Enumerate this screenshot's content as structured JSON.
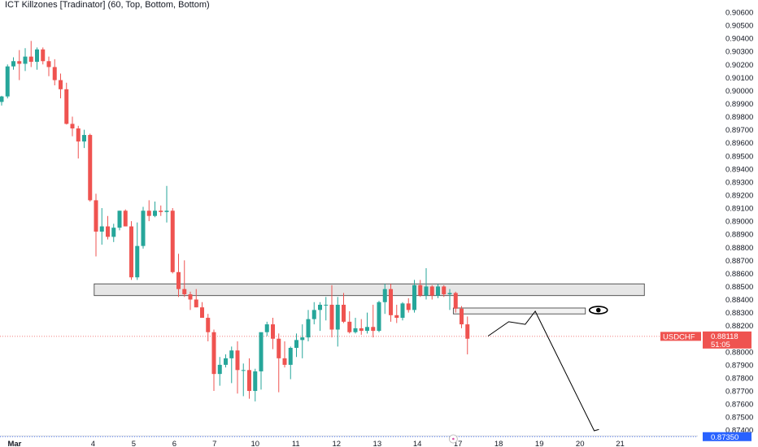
{
  "indicator_label": "ICT Killzones [Tradinator] (60, Top, Bottom, Bottom)",
  "symbol_tag": "USDCHF",
  "colors": {
    "up": "#26a69a",
    "down": "#ef5350",
    "zone_fill": "#e6e6e6",
    "zone_stroke": "#333333",
    "price_line": "#ef5350",
    "target_line": "#2962ff",
    "drawing": "#000000"
  },
  "chart_data": {
    "type": "candlestick",
    "symbol": "USDCHF",
    "y_ticks": [
      "0.90600",
      "0.90500",
      "0.90400",
      "0.90300",
      "0.90200",
      "0.90100",
      "0.90000",
      "0.89900",
      "0.89800",
      "0.89700",
      "0.89600",
      "0.89500",
      "0.89400",
      "0.89300",
      "0.89200",
      "0.89100",
      "0.89000",
      "0.88900",
      "0.88800",
      "0.88700",
      "0.88600",
      "0.88500",
      "0.88400",
      "0.88300",
      "0.88200",
      "0.88000",
      "0.87900",
      "0.87800",
      "0.87700",
      "0.87600",
      "0.87500",
      "0.87400"
    ],
    "x_ticks": [
      {
        "label": "Mar",
        "bold": true,
        "candle": 2.2
      },
      {
        "label": "4",
        "bold": false,
        "candle": 15.5
      },
      {
        "label": "5",
        "bold": false,
        "candle": 22.4
      },
      {
        "label": "6",
        "bold": false,
        "candle": 29.3
      },
      {
        "label": "7",
        "bold": false,
        "candle": 36.1
      },
      {
        "label": "10",
        "bold": false,
        "candle": 43.0
      },
      {
        "label": "11",
        "bold": false,
        "candle": 49.9
      },
      {
        "label": "12",
        "bold": false,
        "candle": 56.8
      },
      {
        "label": "13",
        "bold": false,
        "candle": 63.7
      },
      {
        "label": "14",
        "bold": false,
        "candle": 70.5
      },
      {
        "label": "17",
        "bold": false,
        "candle": 77.4
      },
      {
        "label": "18",
        "bold": false,
        "candle": 84.3
      },
      {
        "label": "19",
        "bold": false,
        "candle": 91.2
      },
      {
        "label": "20",
        "bold": false,
        "candle": 98.1
      },
      {
        "label": "21",
        "bold": false,
        "candle": 104.9
      }
    ],
    "candles": [
      [
        0.89913,
        0.8996,
        0.89885,
        0.89955
      ],
      [
        0.89955,
        0.902,
        0.8994,
        0.90185
      ],
      [
        0.90185,
        0.90255,
        0.9016,
        0.90225
      ],
      [
        0.90225,
        0.9031,
        0.9008,
        0.90205
      ],
      [
        0.90205,
        0.90325,
        0.9015,
        0.9026
      ],
      [
        0.9026,
        0.9038,
        0.9018,
        0.9022
      ],
      [
        0.9022,
        0.9033,
        0.9016,
        0.90315
      ],
      [
        0.90315,
        0.9033,
        0.902,
        0.90225
      ],
      [
        0.90225,
        0.9026,
        0.9011,
        0.9018
      ],
      [
        0.9018,
        0.9024,
        0.9004,
        0.9008
      ],
      [
        0.9008,
        0.9013,
        0.8994,
        0.9001
      ],
      [
        0.9001,
        0.9006,
        0.8974,
        0.89745
      ],
      [
        0.89745,
        0.898,
        0.8965,
        0.8971
      ],
      [
        0.8971,
        0.8973,
        0.8948,
        0.8961
      ],
      [
        0.8961,
        0.897,
        0.8956,
        0.8966
      ],
      [
        0.8966,
        0.8967,
        0.8915,
        0.8916
      ],
      [
        0.8916,
        0.8921,
        0.8873,
        0.8892
      ],
      [
        0.8892,
        0.891,
        0.8882,
        0.8896
      ],
      [
        0.8896,
        0.8904,
        0.8886,
        0.8888
      ],
      [
        0.8888,
        0.8898,
        0.8884,
        0.8895
      ],
      [
        0.8895,
        0.8908,
        0.8893,
        0.8908
      ],
      [
        0.8908,
        0.8909,
        0.8896,
        0.8896
      ],
      [
        0.8896,
        0.89,
        0.8855,
        0.8857
      ],
      [
        0.8857,
        0.8899,
        0.8855,
        0.8881
      ],
      [
        0.8881,
        0.8911,
        0.8879,
        0.8908
      ],
      [
        0.8908,
        0.8916,
        0.89,
        0.8904
      ],
      [
        0.8904,
        0.8915,
        0.8903,
        0.8908
      ],
      [
        0.8908,
        0.8912,
        0.8904,
        0.8907
      ],
      [
        0.8907,
        0.8927,
        0.8899,
        0.8908
      ],
      [
        0.8908,
        0.891,
        0.886,
        0.8861
      ],
      [
        0.8861,
        0.8875,
        0.8842,
        0.8848
      ],
      [
        0.8848,
        0.887,
        0.8842,
        0.8844
      ],
      [
        0.8844,
        0.8846,
        0.8832,
        0.884
      ],
      [
        0.884,
        0.8848,
        0.8834,
        0.8834
      ],
      [
        0.8834,
        0.8838,
        0.8826,
        0.8826
      ],
      [
        0.8826,
        0.8829,
        0.8808,
        0.8815
      ],
      [
        0.8815,
        0.8817,
        0.877,
        0.8783
      ],
      [
        0.8783,
        0.8796,
        0.8774,
        0.879
      ],
      [
        0.879,
        0.8798,
        0.8788,
        0.8795
      ],
      [
        0.8795,
        0.8804,
        0.8776,
        0.8801
      ],
      [
        0.8801,
        0.8808,
        0.8768,
        0.8786
      ],
      [
        0.8786,
        0.8791,
        0.8766,
        0.8786
      ],
      [
        0.8786,
        0.8795,
        0.8764,
        0.877
      ],
      [
        0.877,
        0.8787,
        0.8762,
        0.8785
      ],
      [
        0.8785,
        0.8814,
        0.8771,
        0.8815
      ],
      [
        0.8815,
        0.8823,
        0.8812,
        0.8821
      ],
      [
        0.8821,
        0.8826,
        0.8802,
        0.881
      ],
      [
        0.881,
        0.8814,
        0.8769,
        0.8795
      ],
      [
        0.8795,
        0.8808,
        0.8788,
        0.879
      ],
      [
        0.879,
        0.8804,
        0.8779,
        0.8803
      ],
      [
        0.8803,
        0.8814,
        0.8796,
        0.8809
      ],
      [
        0.8809,
        0.8821,
        0.8795,
        0.8811
      ],
      [
        0.8811,
        0.8832,
        0.8808,
        0.8825
      ],
      [
        0.8825,
        0.8838,
        0.8821,
        0.8832
      ],
      [
        0.8832,
        0.8838,
        0.8816,
        0.8836
      ],
      [
        0.8836,
        0.8842,
        0.8824,
        0.8836
      ],
      [
        0.8836,
        0.8851,
        0.8811,
        0.8817
      ],
      [
        0.8817,
        0.8842,
        0.8804,
        0.8836
      ],
      [
        0.8836,
        0.8845,
        0.8822,
        0.8823
      ],
      [
        0.8823,
        0.8831,
        0.8814,
        0.8815
      ],
      [
        0.8815,
        0.8826,
        0.8814,
        0.8818
      ],
      [
        0.8818,
        0.8825,
        0.8813,
        0.8816
      ],
      [
        0.8816,
        0.883,
        0.8814,
        0.8819
      ],
      [
        0.8819,
        0.8836,
        0.8811,
        0.8816
      ],
      [
        0.8816,
        0.8839,
        0.8815,
        0.8838
      ],
      [
        0.8838,
        0.8852,
        0.8829,
        0.8848
      ],
      [
        0.8848,
        0.8852,
        0.8823,
        0.8828
      ],
      [
        0.8828,
        0.8836,
        0.8822,
        0.8826
      ],
      [
        0.8826,
        0.8838,
        0.8824,
        0.8837
      ],
      [
        0.8837,
        0.8841,
        0.883,
        0.8832
      ],
      [
        0.8832,
        0.8855,
        0.883,
        0.8851
      ],
      [
        0.8851,
        0.8855,
        0.8842,
        0.8843
      ],
      [
        0.8843,
        0.8864,
        0.884,
        0.885
      ],
      [
        0.885,
        0.8851,
        0.884,
        0.8843
      ],
      [
        0.8843,
        0.8852,
        0.8841,
        0.885
      ],
      [
        0.885,
        0.8851,
        0.8842,
        0.8844
      ],
      [
        0.8844,
        0.8848,
        0.8832,
        0.8845
      ],
      [
        0.8845,
        0.8846,
        0.883,
        0.8833
      ],
      [
        0.8833,
        0.8835,
        0.8818,
        0.8821
      ],
      [
        0.8821,
        0.8827,
        0.8798,
        0.881
      ]
    ],
    "supply_zone": {
      "from_candle": 15.7,
      "to_candle": 109,
      "top": 0.8852,
      "bottom": 0.8843
    },
    "small_zone": {
      "from_candle": 76.6,
      "to_candle": 99,
      "top": 0.88335,
      "bottom": 0.8829
    },
    "projection_path": [
      [
        82.5,
        0.8812
      ],
      [
        86,
        0.8823
      ],
      [
        88.8,
        0.8821
      ],
      [
        90.5,
        0.8831
      ],
      [
        100.5,
        0.87395
      ],
      [
        101.3,
        0.87405
      ]
    ],
    "last_price": "0.88118",
    "countdown": "51:05",
    "target_price": "0.87350"
  }
}
